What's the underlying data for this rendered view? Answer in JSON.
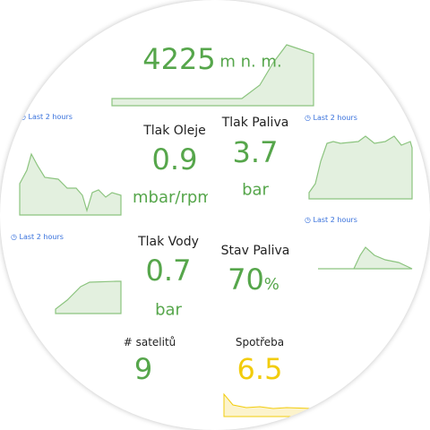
{
  "altitude": {
    "value": "4225",
    "unit": "m n. m."
  },
  "time_ranges": [
    "Last 2 hours",
    "Last 2 hours",
    "Last 2 hours",
    "Last 2 hours"
  ],
  "panels": [
    {
      "title": "Tlak Oleje",
      "value": "0.9",
      "unit": "mbar/rpm"
    },
    {
      "title": "Tlak Paliva",
      "value": "3.7",
      "unit": "bar"
    },
    {
      "title": "Tlak Vody",
      "value": "0.7",
      "unit": "bar"
    },
    {
      "title": "Stav Paliva",
      "value": "70",
      "unit": "%"
    },
    {
      "title": "# satelitů",
      "value": "9"
    },
    {
      "title": "Spotřeba",
      "value": "6.5"
    }
  ]
}
